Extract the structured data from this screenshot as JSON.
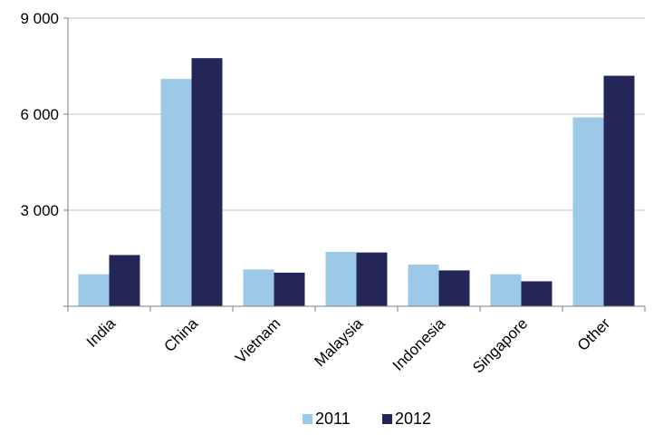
{
  "chart_data": {
    "type": "bar",
    "title": "",
    "xlabel": "",
    "ylabel": "",
    "categories": [
      "India",
      "China",
      "Vietnam",
      "Malaysia",
      "Indonesia",
      "Singapore",
      "Other"
    ],
    "series": [
      {
        "name": "2011",
        "color": "#9dc9e8",
        "values": [
          1000,
          7100,
          1150,
          1700,
          1300,
          1000,
          5900
        ]
      },
      {
        "name": "2012",
        "color": "#232657",
        "values": [
          1600,
          7750,
          1050,
          1680,
          1120,
          780,
          7200
        ]
      }
    ],
    "ylim": [
      0,
      9000
    ],
    "yticks": [
      0,
      3000,
      6000,
      9000
    ],
    "ytick_labels": [
      "",
      "3 000",
      "6 000",
      "9 000"
    ],
    "grid": true,
    "legend_position": "bottom-center"
  }
}
